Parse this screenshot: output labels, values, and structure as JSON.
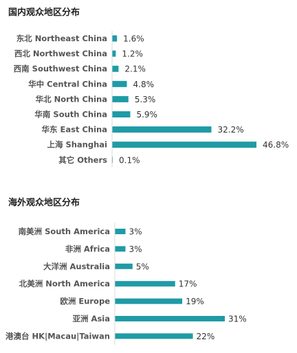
{
  "chart_data": [
    {
      "type": "bar",
      "orientation": "horizontal",
      "title": "国内观众地区分布",
      "categories": [
        "东北 Northeast China",
        "西北 Northwest China",
        "西南 Southwest China",
        "华中 Central China",
        "华北 North China",
        "华南 South China",
        "华东 East China",
        "上海 Shanghai",
        "其它 Others"
      ],
      "values": [
        1.6,
        1.2,
        2.1,
        4.8,
        5.3,
        5.9,
        32.2,
        46.8,
        0.1
      ],
      "value_labels": [
        "1.6%",
        "1.2%",
        "2.1%",
        "4.8%",
        "5.3%",
        "5.9%",
        "32.2%",
        "46.8%",
        "0.1%"
      ],
      "xlabel": "",
      "ylabel": "",
      "xlim": [
        0,
        50
      ],
      "grid": false,
      "legend": "none",
      "bar_color": "#1f9ba6"
    },
    {
      "type": "bar",
      "orientation": "horizontal",
      "title": "海外观众地区分布",
      "categories": [
        "南美洲 South America",
        "非洲 Africa",
        "大洋洲 Australia",
        "北美洲 North America",
        "欧洲 Europe",
        "亚洲 Asia",
        "港澳台 HK|Macau|Taiwan"
      ],
      "values": [
        3,
        3,
        5,
        17,
        19,
        31,
        22
      ],
      "value_labels": [
        "3%",
        "3%",
        "5%",
        "17%",
        "19%",
        "31%",
        "22%"
      ],
      "xlabel": "",
      "ylabel": "",
      "xlim": [
        0,
        35
      ],
      "grid": false,
      "legend": "none",
      "bar_color": "#1f9ba6"
    }
  ]
}
